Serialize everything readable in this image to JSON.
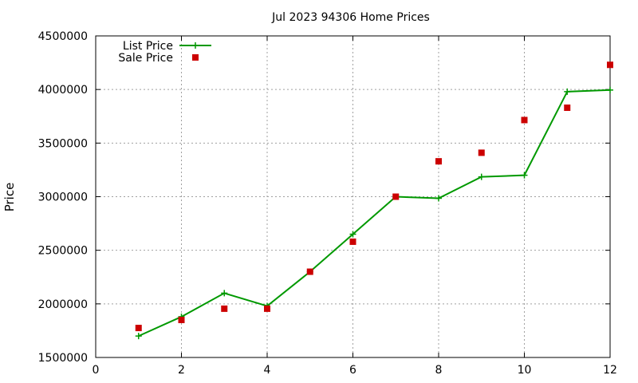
{
  "chart_data": {
    "type": "line",
    "title": "Jul 2023 94306 Home Prices",
    "xlabel": "",
    "ylabel": "Price",
    "xlim": [
      0,
      12
    ],
    "ylim": [
      1500000,
      4500000
    ],
    "xticks": [
      "0",
      "2",
      "4",
      "6",
      "8",
      "10",
      "12"
    ],
    "yticks": [
      "1500000",
      "2000000",
      "2500000",
      "3000000",
      "3500000",
      "4000000",
      "4500000"
    ],
    "grid": true,
    "legend_position": "top-left",
    "series": [
      {
        "name": "List Price",
        "style": "line-plus",
        "color": "#009900",
        "x": [
          1,
          2,
          3,
          4,
          5,
          6,
          7,
          8,
          9,
          10,
          11,
          12
        ],
        "y": [
          1700000,
          1880000,
          2100000,
          1980000,
          2300000,
          2650000,
          3000000,
          2985000,
          3185000,
          3200000,
          3980000,
          3995000
        ]
      },
      {
        "name": "Sale Price",
        "style": "square-points",
        "color": "#cc0000",
        "x": [
          1,
          2,
          3,
          4,
          5,
          6,
          7,
          8,
          9,
          10,
          11,
          12
        ],
        "y": [
          1775000,
          1850000,
          1955000,
          1955000,
          2300000,
          2580000,
          3000000,
          3330000,
          3410000,
          3715000,
          3830000,
          4230000
        ]
      }
    ]
  }
}
